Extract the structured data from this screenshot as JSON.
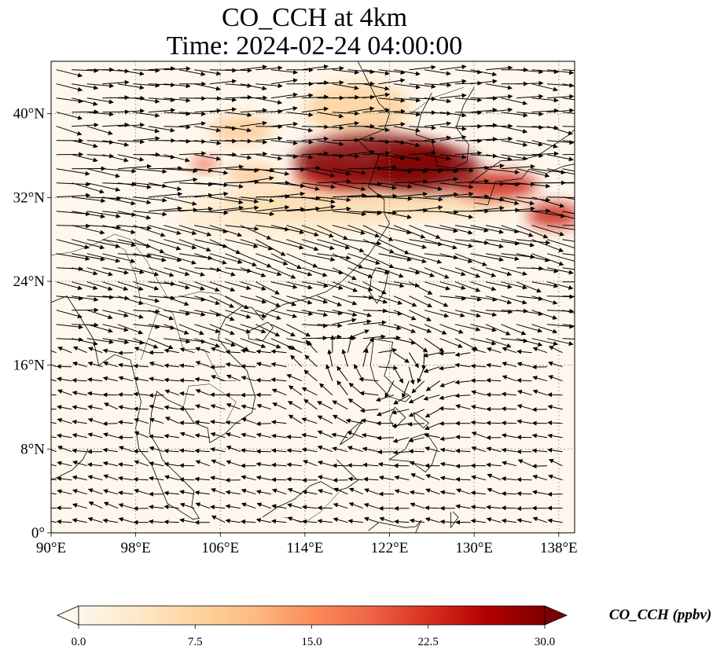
{
  "title": {
    "line1": "CO_CCH at 4km",
    "line2": "Time: 2024-02-24 04:00:00"
  },
  "map": {
    "projection": "PlateCarree",
    "lon_range": [
      90,
      139.5
    ],
    "lat_range": [
      0,
      45
    ],
    "gridlines": "dotted",
    "x_ticks": [
      {
        "value": 90,
        "label": "90°E"
      },
      {
        "value": 98,
        "label": "98°E"
      },
      {
        "value": 106,
        "label": "106°E"
      },
      {
        "value": 114,
        "label": "114°E"
      },
      {
        "value": 122,
        "label": "122°E"
      },
      {
        "value": 130,
        "label": "130°E"
      },
      {
        "value": 138,
        "label": "138°E"
      }
    ],
    "y_ticks": [
      {
        "value": 0,
        "label": "0°"
      },
      {
        "value": 8,
        "label": "8°N"
      },
      {
        "value": 16,
        "label": "16°N"
      },
      {
        "value": 24,
        "label": "24°N"
      },
      {
        "value": 32,
        "label": "32°N"
      },
      {
        "value": 40,
        "label": "40°N"
      }
    ],
    "concentration_plumes": [
      {
        "lon": 120.5,
        "lat": 35.5,
        "rx": 7.5,
        "ry": 2.6,
        "value": 30
      },
      {
        "lon": 125.5,
        "lat": 34.8,
        "rx": 5,
        "ry": 2.2,
        "value": 30
      },
      {
        "lon": 132,
        "lat": 33.2,
        "rx": 4,
        "ry": 1.3,
        "value": 24
      },
      {
        "lon": 137.5,
        "lat": 30.3,
        "rx": 2.5,
        "ry": 1.2,
        "value": 24
      },
      {
        "lon": 117,
        "lat": 34,
        "rx": 4,
        "ry": 1.2,
        "value": 22
      },
      {
        "lon": 104.5,
        "lat": 35.2,
        "rx": 1.3,
        "ry": 0.6,
        "value": 20
      },
      {
        "lon": 109,
        "lat": 34.2,
        "rx": 2.5,
        "ry": 0.9,
        "value": 10
      },
      {
        "lon": 119,
        "lat": 40.5,
        "rx": 5,
        "ry": 2.5,
        "value": 8
      },
      {
        "lon": 108,
        "lat": 38.5,
        "rx": 3,
        "ry": 1.3,
        "value": 9
      },
      {
        "lon": 120,
        "lat": 31.5,
        "rx": 14,
        "ry": 1.6,
        "value": 6
      },
      {
        "lon": 112,
        "lat": 30.5,
        "rx": 10,
        "ry": 2.5,
        "value": 3
      }
    ],
    "wind_regions": [
      {
        "name": "westerlies",
        "lat_min": 18,
        "lat_max": 45,
        "u": 1.0,
        "v": -0.12,
        "speed": 1.0
      },
      {
        "name": "cyclonic-swirl",
        "center_lon": 121,
        "center_lat": 15,
        "radius": 10
      },
      {
        "name": "tropical-light",
        "lat_min": 0,
        "lat_max": 16,
        "u": -0.8,
        "v": 0.15,
        "speed": 0.35
      }
    ]
  },
  "colorbar": {
    "cmap": "OrRd",
    "vmin": 0.0,
    "vmax": 30.0,
    "extend": "both",
    "ticks": [
      "0.0",
      "7.5",
      "15.0",
      "22.5",
      "30.0"
    ],
    "label": "CO_CCH (ppbv)",
    "colors": [
      "#fff7ec",
      "#fee8c8",
      "#fdd49e",
      "#fdbb84",
      "#fc8d59",
      "#ef6548",
      "#d7301f",
      "#b30000",
      "#7f0000"
    ]
  }
}
